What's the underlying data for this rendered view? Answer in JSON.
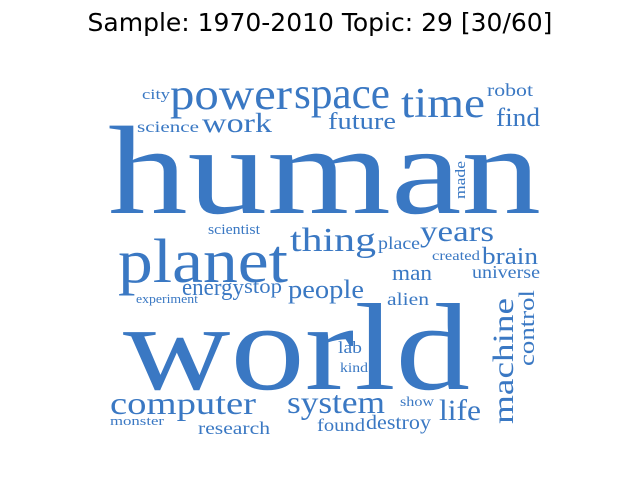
{
  "title": "Sample: 1970-2010 Topic: 29 [30/60]",
  "color": "#3a78c3",
  "words": {
    "city": "city",
    "power": "power",
    "space": "space",
    "robot": "robot",
    "time": "time",
    "science": "science",
    "work": "work",
    "future": "future",
    "find": "find",
    "human": "human",
    "made": "made",
    "scientist": "scientist",
    "thing": "thing",
    "place": "place",
    "years": "years",
    "planet": "planet",
    "created": "created",
    "brain": "brain",
    "energy": "energy",
    "stop": "stop",
    "people": "people",
    "man": "man",
    "universe": "universe",
    "experiment": "experiment",
    "control": "control",
    "alien": "alien",
    "world": "world",
    "machine": "machine",
    "lab": "lab",
    "kind": "kind",
    "computer": "computer",
    "system": "system",
    "show": "show",
    "life": "life",
    "monster": "monster",
    "research": "research",
    "found": "found",
    "destroy": "destroy"
  }
}
